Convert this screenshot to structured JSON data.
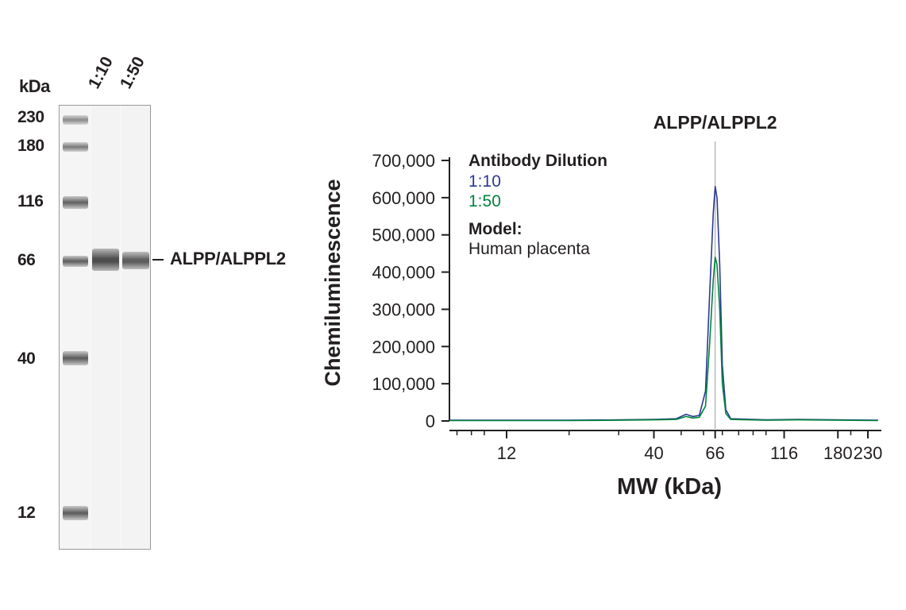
{
  "blot": {
    "unit_label": "kDa",
    "lane_labels": [
      "1:10",
      "1:50"
    ],
    "mw_markers": [
      "230",
      "180",
      "116",
      "66",
      "40",
      "12"
    ],
    "band_label": "ALPP/ALPPL2"
  },
  "chart_data": {
    "type": "line",
    "title": "ALPP/ALPPL2",
    "xlabel": "MW (kDa)",
    "ylabel": "Chemiluminescence",
    "x_scale": "log",
    "x_ticks": [
      "12",
      "40",
      "66",
      "116",
      "180",
      "230"
    ],
    "y_ticks": [
      "0",
      "100,000",
      "200,000",
      "300,000",
      "400,000",
      "500,000",
      "600,000",
      "700,000"
    ],
    "ylim": [
      0,
      700000
    ],
    "legend": {
      "heading": "Antibody Dilution",
      "entries": [
        "1:10",
        "1:50"
      ],
      "model_heading": "Model:",
      "model_value": "Human placenta",
      "placement": "top-left"
    },
    "marker_line_kda": 66,
    "series": [
      {
        "name": "1:10",
        "color": "#2b3990",
        "points": [
          [
            6,
            2000
          ],
          [
            20,
            2000
          ],
          [
            30,
            3000
          ],
          [
            40,
            4000
          ],
          [
            48,
            6000
          ],
          [
            52,
            18000
          ],
          [
            55,
            12000
          ],
          [
            58,
            15000
          ],
          [
            61,
            80000
          ],
          [
            63,
            330000
          ],
          [
            65,
            560000
          ],
          [
            66,
            630000
          ],
          [
            67,
            600000
          ],
          [
            68.5,
            420000
          ],
          [
            70,
            150000
          ],
          [
            72,
            30000
          ],
          [
            75,
            6000
          ],
          [
            100,
            3000
          ],
          [
            130,
            4000
          ],
          [
            250,
            2000
          ]
        ]
      },
      {
        "name": "1:50",
        "color": "#00843d",
        "points": [
          [
            6,
            1000
          ],
          [
            20,
            1000
          ],
          [
            30,
            2000
          ],
          [
            40,
            3000
          ],
          [
            48,
            4000
          ],
          [
            52,
            12000
          ],
          [
            55,
            8000
          ],
          [
            58,
            10000
          ],
          [
            61,
            40000
          ],
          [
            63,
            200000
          ],
          [
            65,
            380000
          ],
          [
            66,
            440000
          ],
          [
            67,
            420000
          ],
          [
            68.5,
            300000
          ],
          [
            70,
            100000
          ],
          [
            72,
            20000
          ],
          [
            75,
            4000
          ],
          [
            100,
            2000
          ],
          [
            130,
            3000
          ],
          [
            250,
            1000
          ]
        ]
      }
    ]
  },
  "colors": {
    "series_1": "#2b3990",
    "series_2": "#00843d",
    "axis": "#231f20"
  }
}
